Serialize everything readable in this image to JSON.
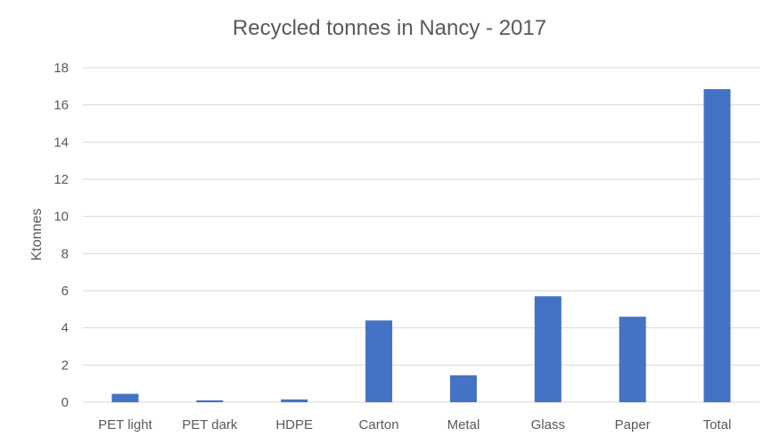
{
  "chart_data": {
    "type": "bar",
    "title": "Recycled tonnes in Nancy - 2017",
    "xlabel": "",
    "ylabel": "Ktonnes",
    "categories": [
      "PET light",
      "PET dark",
      "HDPE",
      "Carton",
      "Metal",
      "Glass",
      "Paper",
      "Total"
    ],
    "values": [
      0.45,
      0.1,
      0.15,
      4.4,
      1.45,
      5.7,
      4.6,
      16.85
    ],
    "ylim": [
      0,
      18
    ],
    "yticks": [
      0,
      2,
      4,
      6,
      8,
      10,
      12,
      14,
      16,
      18
    ],
    "grid": true,
    "legend": "none",
    "bar_color": "#4472C4"
  }
}
